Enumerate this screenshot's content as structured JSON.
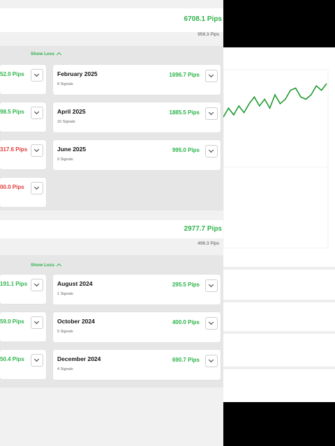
{
  "section_a": {
    "total_pips": "6708.1 Pips",
    "avg_pips": "958.3 Pips",
    "show_less": "Show Less",
    "left_cards": [
      {
        "pips": "52.0 Pips",
        "tone": "pos"
      },
      {
        "pips": "98.5 Pips",
        "tone": "pos"
      },
      {
        "pips": "317.6 Pips",
        "tone": "neg"
      },
      {
        "pips": "00.0 Pips",
        "tone": "neg"
      }
    ],
    "cards": [
      {
        "month": "February 2025",
        "signals": "8 Signals",
        "pips": "1696.7 Pips"
      },
      {
        "month": "April 2025",
        "signals": "16 Signals",
        "pips": "1885.5 Pips"
      },
      {
        "month": "June 2025",
        "signals": "9 Signals",
        "pips": "995.0 Pips"
      }
    ]
  },
  "section_b": {
    "total_pips": "2977.7 Pips",
    "avg_pips": "496.3 Pips",
    "show_less": "Show Less",
    "left_cards": [
      {
        "pips": "191.1 Pips",
        "tone": "pos"
      },
      {
        "pips": "59.0 Pips",
        "tone": "pos"
      },
      {
        "pips": "50.4 Pips",
        "tone": "pos"
      }
    ],
    "cards": [
      {
        "month": "August 2024",
        "signals": "1 Signals",
        "pips": "295.5 Pips"
      },
      {
        "month": "October 2024",
        "signals": "5 Signals",
        "pips": "400.0 Pips"
      },
      {
        "month": "December 2024",
        "signals": "4 Signals",
        "pips": "690.7 Pips"
      }
    ]
  },
  "colors": {
    "positive": "#2db34a",
    "negative": "#e03a3a",
    "line": "#1f9a2e"
  },
  "chart_data": {
    "type": "line",
    "series": [
      {
        "values": [
          10,
          18,
          12,
          20,
          14,
          22,
          28,
          20,
          26,
          18,
          30,
          22,
          26,
          34,
          36,
          28,
          26,
          30,
          38,
          34,
          40
        ]
      }
    ],
    "xlabel": "",
    "ylabel": "",
    "grid": true
  }
}
